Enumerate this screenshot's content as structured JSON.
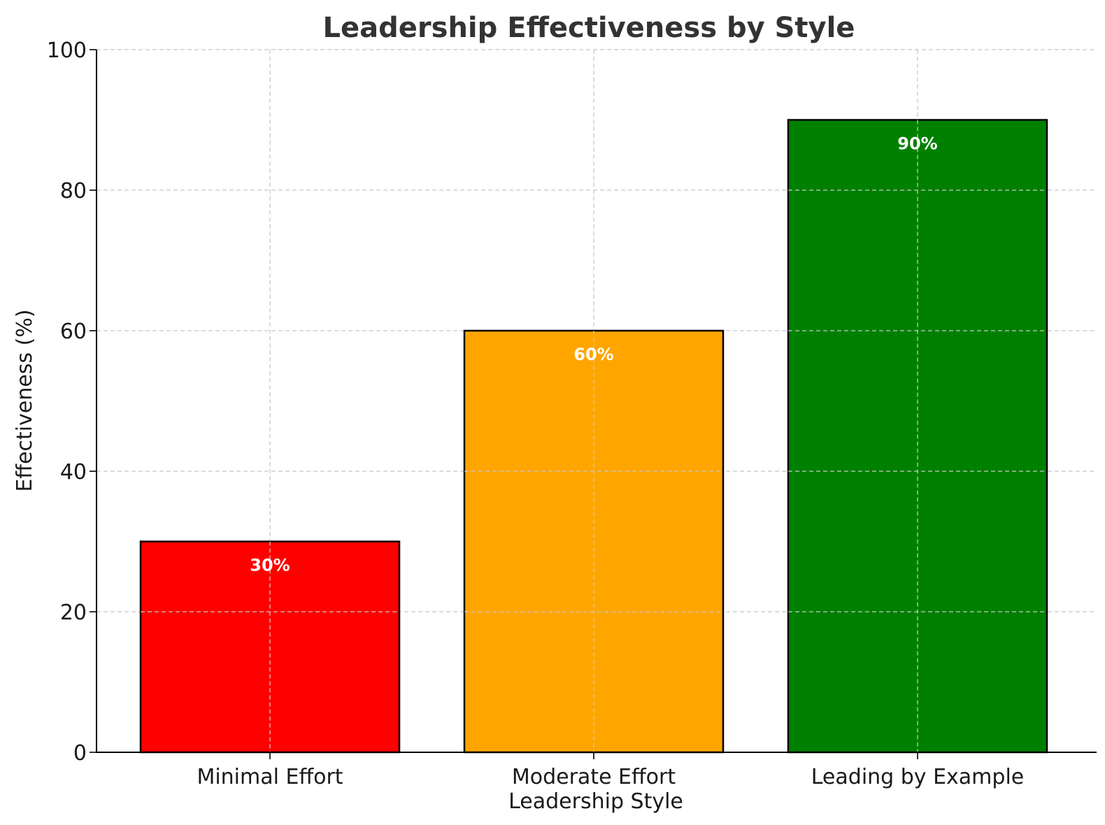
{
  "chart_data": {
    "type": "bar",
    "title": "Leadership Effectiveness by Style",
    "xlabel": "Leadership Style",
    "ylabel": "Effectiveness (%)",
    "categories": [
      "Minimal Effort",
      "Moderate Effort",
      "Leading by Example"
    ],
    "values": [
      30,
      60,
      90
    ],
    "data_labels": [
      "30%",
      "60%",
      "90%"
    ],
    "colors": [
      "#ff0000",
      "#ffa500",
      "#008000"
    ],
    "ylim": [
      0,
      100
    ],
    "yticks": [
      0,
      20,
      40,
      60,
      80,
      100
    ],
    "grid": true
  }
}
